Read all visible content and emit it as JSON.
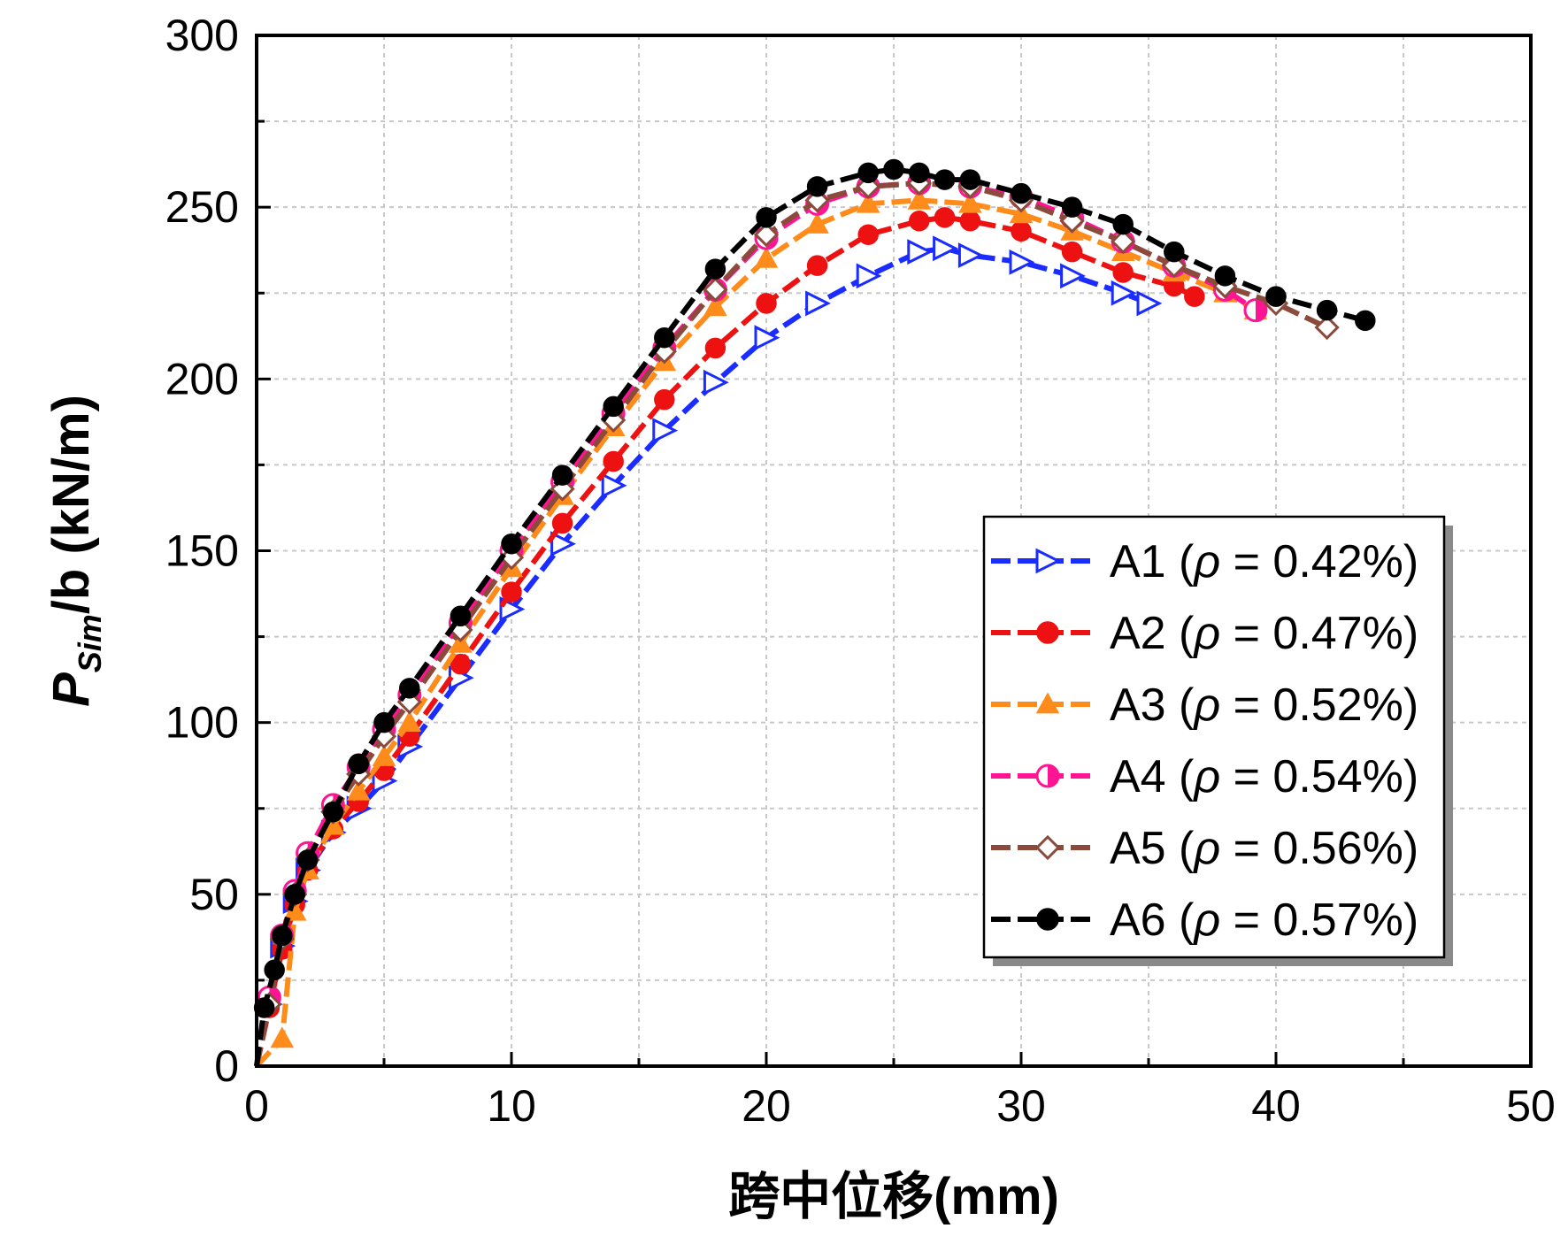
{
  "chart_data": {
    "type": "line",
    "title": "",
    "xlabel": "跨中位移(mm)",
    "ylabel": {
      "main": "P",
      "sub": "Sim",
      "rest": "/b (kN/m)"
    },
    "xlim": [
      0,
      50
    ],
    "ylim": [
      0,
      300
    ],
    "x_ticks": [
      "0",
      "10",
      "20",
      "30",
      "40",
      "50"
    ],
    "y_ticks": [
      "0",
      "50",
      "100",
      "150",
      "200",
      "250",
      "300"
    ],
    "grid": true,
    "legend_position": "right-middle",
    "series": [
      {
        "name": "A1",
        "legend_prefix": "A1 (",
        "rho_symbol": "ρ",
        "legend_value": " = 0.42%)",
        "color": "#1a2cff",
        "marker": "triangle-right",
        "x": [
          0,
          0.5,
          1,
          1.5,
          2,
          3,
          4,
          5,
          6,
          8,
          10,
          12,
          14,
          16,
          18,
          20,
          22,
          24,
          26,
          27,
          28,
          30,
          32,
          34,
          35
        ],
        "y": [
          0,
          18,
          35,
          48,
          57,
          68,
          75,
          83,
          93,
          113,
          133,
          152,
          169,
          185,
          199,
          212,
          222,
          230,
          237,
          238,
          236,
          234,
          230,
          225,
          222
        ]
      },
      {
        "name": "A2",
        "legend_prefix": "A2 (",
        "rho_symbol": "ρ",
        "legend_value": " = 0.47%)",
        "color": "#ee1111",
        "marker": "circle",
        "x": [
          0,
          0.5,
          1,
          1.5,
          2,
          3,
          4,
          5,
          6,
          8,
          10,
          12,
          14,
          16,
          18,
          20,
          22,
          24,
          26,
          27,
          28,
          30,
          32,
          34,
          36,
          36.8
        ],
        "y": [
          0,
          17,
          34,
          47,
          57,
          69,
          77,
          86,
          96,
          117,
          138,
          158,
          176,
          194,
          209,
          222,
          233,
          242,
          246,
          247,
          246,
          243,
          237,
          231,
          227,
          224
        ]
      },
      {
        "name": "A3",
        "legend_prefix": "A3 (",
        "rho_symbol": "ρ",
        "legend_value": " = 0.52%)",
        "color": "#ff8c1a",
        "marker": "triangle-up",
        "x": [
          0,
          1,
          1.5,
          2,
          3,
          4,
          5,
          6,
          8,
          10,
          12,
          14,
          16,
          18,
          20,
          22,
          24,
          26,
          28,
          30,
          32,
          34,
          36,
          38,
          39.2
        ],
        "y": [
          0,
          8,
          45,
          57,
          70,
          80,
          90,
          100,
          123,
          145,
          166,
          186,
          205,
          221,
          235,
          245,
          251,
          252,
          251,
          248,
          243,
          237,
          231,
          225,
          220
        ]
      },
      {
        "name": "A4",
        "legend_prefix": "A4 (",
        "rho_symbol": "ρ",
        "legend_value": " = 0.54%)",
        "color": "#ff1493",
        "marker": "half-circle",
        "x": [
          0,
          0.5,
          1,
          1.5,
          2,
          3,
          4,
          5,
          6,
          8,
          10,
          12,
          14,
          16,
          18,
          20,
          22,
          24,
          26,
          28,
          30,
          32,
          34,
          36,
          38,
          39.2
        ],
        "y": [
          0,
          20,
          38,
          51,
          62,
          76,
          87,
          98,
          108,
          129,
          150,
          170,
          190,
          209,
          226,
          241,
          251,
          256,
          257,
          256,
          253,
          247,
          240,
          233,
          226,
          220
        ]
      },
      {
        "name": "A5",
        "legend_prefix": "A5 (",
        "rho_symbol": "ρ",
        "legend_value": " = 0.56%)",
        "color": "#8b4a3c",
        "marker": "diamond",
        "x": [
          0,
          0.5,
          1,
          1.5,
          2,
          3,
          4,
          5,
          6,
          8,
          10,
          12,
          14,
          16,
          18,
          20,
          22,
          24,
          26,
          28,
          30,
          32,
          34,
          36,
          38,
          40,
          42
        ],
        "y": [
          0,
          18,
          37,
          50,
          60,
          74,
          85,
          96,
          106,
          127,
          148,
          168,
          188,
          208,
          226,
          242,
          252,
          256,
          257,
          256,
          252,
          246,
          240,
          233,
          227,
          222,
          215
        ]
      },
      {
        "name": "A6",
        "legend_prefix": "A6 (",
        "rho_symbol": "ρ",
        "legend_value": " = 0.57%)",
        "color": "#000000",
        "marker": "circle",
        "x": [
          0,
          0.3,
          0.7,
          1,
          1.5,
          2,
          3,
          4,
          5,
          6,
          8,
          10,
          12,
          14,
          16,
          18,
          20,
          22,
          24,
          25,
          26,
          27,
          28,
          30,
          32,
          34,
          36,
          38,
          40,
          42,
          43.5
        ],
        "y": [
          0,
          17,
          28,
          38,
          50,
          60,
          74,
          88,
          100,
          110,
          131,
          152,
          172,
          192,
          212,
          232,
          247,
          256,
          260,
          261,
          260,
          258,
          258,
          254,
          250,
          245,
          237,
          230,
          224,
          220,
          217
        ]
      }
    ]
  }
}
